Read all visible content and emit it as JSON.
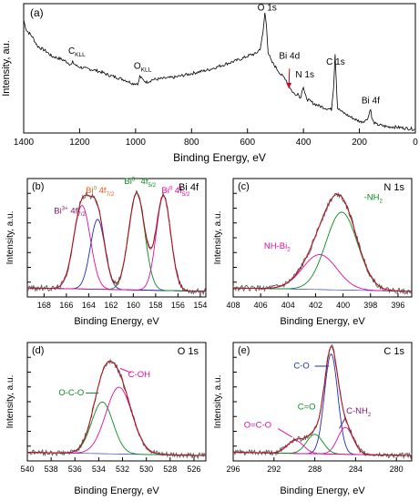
{
  "chart_data": [
    {
      "panel": "(a)",
      "type": "line",
      "xlabel": "Binding Energy, eV",
      "ylabel": "Intensity, au.",
      "xlim": [
        1400,
        0
      ],
      "x_ticks": [
        1400,
        1200,
        1000,
        800,
        600,
        400,
        200,
        0
      ],
      "series": [
        {
          "color": "#000000",
          "points": [
            [
              1400,
              0.91
            ],
            [
              1390,
              0.83
            ],
            [
              1370,
              0.78
            ],
            [
              1350,
              0.7
            ],
            [
              1320,
              0.66
            ],
            [
              1300,
              0.62
            ],
            [
              1270,
              0.6
            ],
            [
              1250,
              0.58
            ],
            [
              1230,
              0.55
            ],
            [
              1225,
              0.57
            ],
            [
              1210,
              0.54
            ],
            [
              1180,
              0.52
            ],
            [
              1150,
              0.51
            ],
            [
              1120,
              0.49
            ],
            [
              1100,
              0.47
            ],
            [
              1070,
              0.45
            ],
            [
              1040,
              0.43
            ],
            [
              1010,
              0.4
            ],
            [
              990,
              0.4
            ],
            [
              985,
              0.46
            ],
            [
              975,
              0.43
            ],
            [
              960,
              0.41
            ],
            [
              940,
              0.43
            ],
            [
              900,
              0.44
            ],
            [
              860,
              0.45
            ],
            [
              820,
              0.47
            ],
            [
              780,
              0.49
            ],
            [
              740,
              0.51
            ],
            [
              700,
              0.54
            ],
            [
              660,
              0.57
            ],
            [
              620,
              0.6
            ],
            [
              590,
              0.63
            ],
            [
              570,
              0.64
            ],
            [
              555,
              0.68
            ],
            [
              545,
              0.8
            ],
            [
              538,
              0.97
            ],
            [
              532,
              0.86
            ],
            [
              526,
              0.65
            ],
            [
              515,
              0.58
            ],
            [
              505,
              0.55
            ],
            [
              480,
              0.47
            ],
            [
              465,
              0.44
            ],
            [
              455,
              0.4
            ],
            [
              442,
              0.34
            ],
            [
              430,
              0.31
            ],
            [
              420,
              0.32
            ],
            [
              410,
              0.28
            ],
            [
              405,
              0.35
            ],
            [
              400,
              0.37
            ],
            [
              395,
              0.31
            ],
            [
              385,
              0.27
            ],
            [
              365,
              0.24
            ],
            [
              345,
              0.22
            ],
            [
              320,
              0.2
            ],
            [
              300,
              0.19
            ],
            [
              292,
              0.38
            ],
            [
              287,
              0.64
            ],
            [
              283,
              0.44
            ],
            [
              278,
              0.2
            ],
            [
              262,
              0.17
            ],
            [
              240,
              0.14
            ],
            [
              215,
              0.11
            ],
            [
              195,
              0.09
            ],
            [
              178,
              0.1
            ],
            [
              168,
              0.13
            ],
            [
              160,
              0.2
            ],
            [
              156,
              0.12
            ],
            [
              150,
              0.09
            ],
            [
              140,
              0.07
            ],
            [
              120,
              0.06
            ],
            [
              100,
              0.05
            ],
            [
              80,
              0.05
            ],
            [
              60,
              0.045
            ],
            [
              40,
              0.04
            ],
            [
              20,
              0.035
            ],
            [
              0,
              0.03
            ]
          ]
        }
      ],
      "annotations": [
        {
          "x": 1210,
          "y": 0.64,
          "main": "C",
          "sub": "KLL"
        },
        {
          "x": 975,
          "y": 0.52,
          "main": "O",
          "sub": "KLL"
        },
        {
          "x": 530,
          "y": 0.99,
          "main": "O 1s",
          "sub": ""
        },
        {
          "x": 450,
          "y": 0.6,
          "main": "Bi 4d",
          "sub": ""
        },
        {
          "x": 395,
          "y": 0.45,
          "main": "N 1s",
          "sub": ""
        },
        {
          "x": 285,
          "y": 0.55,
          "main": "C 1s",
          "sub": ""
        },
        {
          "x": 160,
          "y": 0.24,
          "main": "Bi 4f",
          "sub": ""
        }
      ],
      "arrow": {
        "from": [
          450,
          0.52
        ],
        "to": [
          452,
          0.36
        ],
        "color": "#e0001b"
      }
    },
    {
      "panel": "(b)",
      "title": "Bi 4f",
      "type": "line",
      "xlabel": "Binding Energy, eV",
      "ylabel": "Intensity, a.u.",
      "xlim": [
        169.5,
        153.5
      ],
      "x_ticks": [
        168,
        166,
        164,
        162,
        160,
        158,
        156,
        154
      ],
      "ylim": [
        0,
        1.05
      ],
      "baseline": 0.05,
      "components": [
        {
          "color": "#e60a9e",
          "center": 164.6,
          "width": 0.75,
          "height": 0.74
        },
        {
          "color": "#1a2eb8",
          "center": 163.2,
          "width": 0.65,
          "height": 0.62
        },
        {
          "color": "#0a8a1e",
          "center": 159.7,
          "width": 0.72,
          "height": 0.86
        },
        {
          "color": "#e60a9e",
          "center": 157.3,
          "width": 0.65,
          "height": 0.84
        }
      ],
      "fit_color": "#b8101a",
      "data_color": "#5a5a5a",
      "labels": [
        {
          "main": "Bi",
          "sup": "3+",
          "rest": " 4f",
          "sub": "7/2",
          "color": "#7a1770",
          "x": 165.7,
          "y": 0.74
        },
        {
          "main": "Bi",
          "sup": "0",
          "rest": " 4f",
          "sub": "7/2",
          "color": "#e8601c",
          "x": 163.0,
          "y": 0.92
        },
        {
          "main": "Bi",
          "sup": "3+",
          "rest": " 4f",
          "sub": "5/2",
          "color": "#0a8a1e",
          "x": 159.4,
          "y": 1.0
        },
        {
          "main": "Bi",
          "sup": "0",
          "rest": " 4f",
          "sub": "5/2",
          "color": "#e60a9e",
          "x": 156.2,
          "y": 0.92
        }
      ]
    },
    {
      "panel": "(c)",
      "title": "N 1s",
      "type": "line",
      "xlabel": "Binding Energy, eV",
      "ylabel": "Intensity, a.u.",
      "xlim": [
        408,
        395
      ],
      "x_ticks": [
        408,
        406,
        404,
        402,
        400,
        398,
        396
      ],
      "ylim": [
        0,
        1.05
      ],
      "baseline": 0.05,
      "components": [
        {
          "color": "#0a8a1e",
          "center": 400.1,
          "width": 1.15,
          "height": 0.69
        },
        {
          "color": "#e60a9e",
          "center": 401.7,
          "width": 1.25,
          "height": 0.31
        }
      ],
      "fit_color": "#b8101a",
      "data_color": "#5a5a5a",
      "labels": [
        {
          "main": "-NH",
          "sub": "2",
          "color": "#0a8a1e",
          "x": 397.8,
          "y": 0.86
        },
        {
          "main": "NH",
          "sub": "2",
          "rest": "-Bi",
          "color": "#e60a9e",
          "x": 404.8,
          "y": 0.43
        }
      ]
    },
    {
      "panel": "(d)",
      "title": "O 1s",
      "type": "line",
      "xlabel": "Binding Energy, eV",
      "ylabel": "Intensity, a.u.",
      "xlim": [
        540,
        525
      ],
      "x_ticks": [
        540,
        538,
        536,
        534,
        532,
        530,
        528,
        526
      ],
      "ylim": [
        0,
        1.1
      ],
      "baseline": 0.05,
      "components": [
        {
          "color": "#0a8a1e",
          "center": 533.7,
          "width": 0.9,
          "height": 0.48
        },
        {
          "color": "#e60a9e",
          "center": 532.3,
          "width": 1.1,
          "height": 0.62
        }
      ],
      "fit_color": "#b8101a",
      "data_color": "#5a5a5a",
      "labels": [
        {
          "main": "C-OH",
          "color": "#e60a9e",
          "x": 530.6,
          "y": 0.78
        },
        {
          "main": "O-C-O",
          "color": "#0a8a1e",
          "x": 536.3,
          "y": 0.61
        }
      ]
    },
    {
      "panel": "(e)",
      "title": "C 1s",
      "type": "line",
      "xlabel": "Binding Energy, eV",
      "ylabel": "Intensity, a.u.",
      "xlim": [
        296,
        278.5
      ],
      "x_ticks": [
        296,
        292,
        288,
        284,
        280
      ],
      "ylim": [
        0,
        1.1
      ],
      "baseline": 0.05,
      "components": [
        {
          "color": "#1a2eb8",
          "center": 286.4,
          "width": 0.65,
          "height": 0.93
        },
        {
          "color": "#e60a9e",
          "center": 285.0,
          "width": 0.75,
          "height": 0.25
        },
        {
          "color": "#0a8a1e",
          "center": 288.0,
          "width": 0.8,
          "height": 0.18
        },
        {
          "color": "#e60a9e",
          "center": 289.9,
          "width": 0.8,
          "height": 0.12
        }
      ],
      "fit_color": "#b8101a",
      "data_color": "#5a5a5a",
      "labels": [
        {
          "main": "C-O",
          "color": "#1a2eb8",
          "x": 289.3,
          "y": 0.86
        },
        {
          "main": "C=O",
          "color": "#0a8a1e",
          "x": 288.8,
          "y": 0.48
        },
        {
          "main": "C-NH",
          "sub": "2",
          "color": "#7a1770",
          "x": 283.7,
          "y": 0.44
        },
        {
          "main": "O=C-O",
          "color": "#e60a9e",
          "x": 293.6,
          "y": 0.31
        }
      ]
    }
  ]
}
